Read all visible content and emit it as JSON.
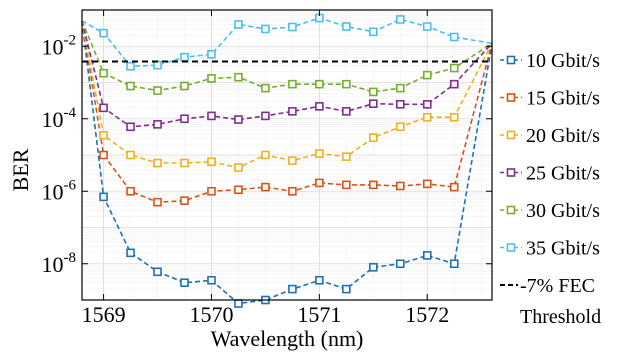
{
  "chart_data": {
    "type": "line",
    "xlabel": "Wavelength (nm)",
    "ylabel": "BER",
    "xlim": [
      1568.8,
      1572.6
    ],
    "ylim": [
      1e-09,
      0.1
    ],
    "y_scale": "log",
    "grid": true,
    "legend_placement": "right-outside",
    "x_ticks": [
      {
        "value": 1569,
        "label": "1569"
      },
      {
        "value": 1570,
        "label": "1570"
      },
      {
        "value": 1571,
        "label": "1571"
      },
      {
        "value": 1572,
        "label": "1572"
      }
    ],
    "y_ticks": [
      {
        "value": 1e-08,
        "base": "10",
        "exp": "-8"
      },
      {
        "value": 1e-06,
        "base": "10",
        "exp": "-6"
      },
      {
        "value": 0.0001,
        "base": "10",
        "exp": "-4"
      },
      {
        "value": 0.01,
        "base": "10",
        "exp": "-2"
      }
    ],
    "x_points": [
      1569,
      1569.25,
      1569.5,
      1569.75,
      1570,
      1570.25,
      1570.5,
      1570.75,
      1571,
      1571.25,
      1571.5,
      1571.75,
      1572,
      1572.25
    ],
    "left_edge_x": 1568.8,
    "right_edge_x": 1572.6,
    "series": [
      {
        "name": "10 Gbit/s",
        "color": "#1f6fb5",
        "values": [
          7e-07,
          2e-08,
          6e-09,
          3e-09,
          3.5e-09,
          8e-10,
          1e-09,
          2e-09,
          3.5e-09,
          2e-09,
          8e-09,
          1e-08,
          1.7e-08,
          1e-08
        ],
        "left_value": 0.05,
        "right_value": 0.012
      },
      {
        "name": "15 Gbit/s",
        "color": "#d95319",
        "values": [
          1e-05,
          1e-06,
          5e-07,
          5.5e-07,
          1e-06,
          1.1e-06,
          1.3e-06,
          1e-06,
          1.7e-06,
          1.5e-06,
          1.5e-06,
          1.4e-06,
          1.6e-06,
          1.3e-06
        ],
        "left_value": 0.05,
        "right_value": 0.012
      },
      {
        "name": "20 Gbit/s",
        "color": "#edb120",
        "values": [
          3.5e-05,
          1e-05,
          6e-06,
          6e-06,
          6.5e-06,
          4.5e-06,
          1e-05,
          7e-06,
          1.1e-05,
          9e-06,
          3e-05,
          6e-05,
          0.00011,
          0.00011
        ],
        "left_value": 0.05,
        "right_value": 0.012
      },
      {
        "name": "25 Gbit/s",
        "color": "#7e2f8e",
        "values": [
          0.0002,
          6e-05,
          7e-05,
          0.0001,
          0.00012,
          9.5e-05,
          0.00012,
          0.00016,
          0.00022,
          0.00016,
          0.00026,
          0.00025,
          0.00025,
          0.0009
        ],
        "left_value": 0.05,
        "right_value": 0.012
      },
      {
        "name": "30 Gbit/s",
        "color": "#77ac30",
        "values": [
          0.0018,
          0.0008,
          0.0006,
          0.0008,
          0.0013,
          0.0014,
          0.0007,
          0.0009,
          0.0009,
          0.0009,
          0.00055,
          0.0007,
          0.0016,
          0.0025
        ],
        "left_value": 0.05,
        "right_value": 0.012
      },
      {
        "name": "35 Gbit/s",
        "color": "#4dbeee",
        "values": [
          0.023,
          0.0028,
          0.003,
          0.005,
          0.006,
          0.04,
          0.03,
          0.034,
          0.06,
          0.035,
          0.025,
          0.055,
          0.035,
          0.018
        ],
        "left_value": 0.05,
        "right_value": 0.012
      }
    ],
    "threshold": {
      "name": "-7% FEC Threshold",
      "value": 0.0038,
      "color": "#000000"
    }
  },
  "legend": {
    "items": [
      {
        "label": "10 Gbit/s",
        "color": "#1f6fb5"
      },
      {
        "label": "15 Gbit/s",
        "color": "#d95319"
      },
      {
        "label": "20 Gbit/s",
        "color": "#edb120"
      },
      {
        "label": "25 Gbit/s",
        "color": "#7e2f8e"
      },
      {
        "label": "30 Gbit/s",
        "color": "#77ac30"
      },
      {
        "label": "35 Gbit/s",
        "color": "#4dbeee"
      }
    ],
    "threshold_line1": "-7% FEC",
    "threshold_line2": "Threshold"
  }
}
